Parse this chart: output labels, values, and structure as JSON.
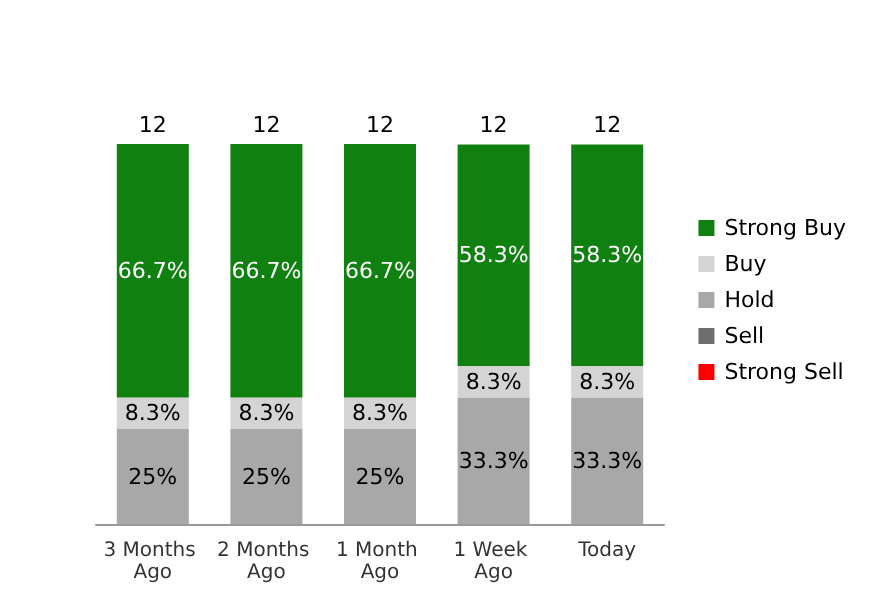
{
  "chart_data": {
    "type": "bar",
    "stacked": true,
    "legend": "right",
    "categories": [
      "3 Months Ago",
      "2 Months Ago",
      "1 Month Ago",
      "1 Week Ago",
      "Today"
    ],
    "series": [
      {
        "name": "Strong Sell",
        "color": "#ff0000",
        "values": [
          null,
          null,
          null,
          null,
          null
        ]
      },
      {
        "name": "Sell",
        "color": "#6e6e6e",
        "values": [
          null,
          null,
          null,
          null,
          null
        ]
      },
      {
        "name": "Hold",
        "color": "#a8a8a8",
        "values": [
          25,
          25,
          25,
          33.3,
          33.3
        ],
        "value_labels": [
          "25%",
          "25%",
          "25%",
          "33.3%",
          "33.3%"
        ]
      },
      {
        "name": "Buy",
        "color": "#d4d4d4",
        "values": [
          8.3,
          8.3,
          8.3,
          8.3,
          8.3
        ],
        "value_labels": [
          "8.3%",
          "8.3%",
          "8.3%",
          "8.3%",
          "8.3%"
        ]
      },
      {
        "name": "Strong Buy",
        "color": "#108010",
        "values": [
          66.7,
          66.7,
          66.7,
          58.3,
          58.3
        ],
        "value_labels": [
          "66.7%",
          "66.7%",
          "66.7%",
          "58.3%",
          "58.3%"
        ]
      }
    ],
    "annotations": [
      "12",
      "12",
      "12",
      "12",
      "12"
    ]
  }
}
